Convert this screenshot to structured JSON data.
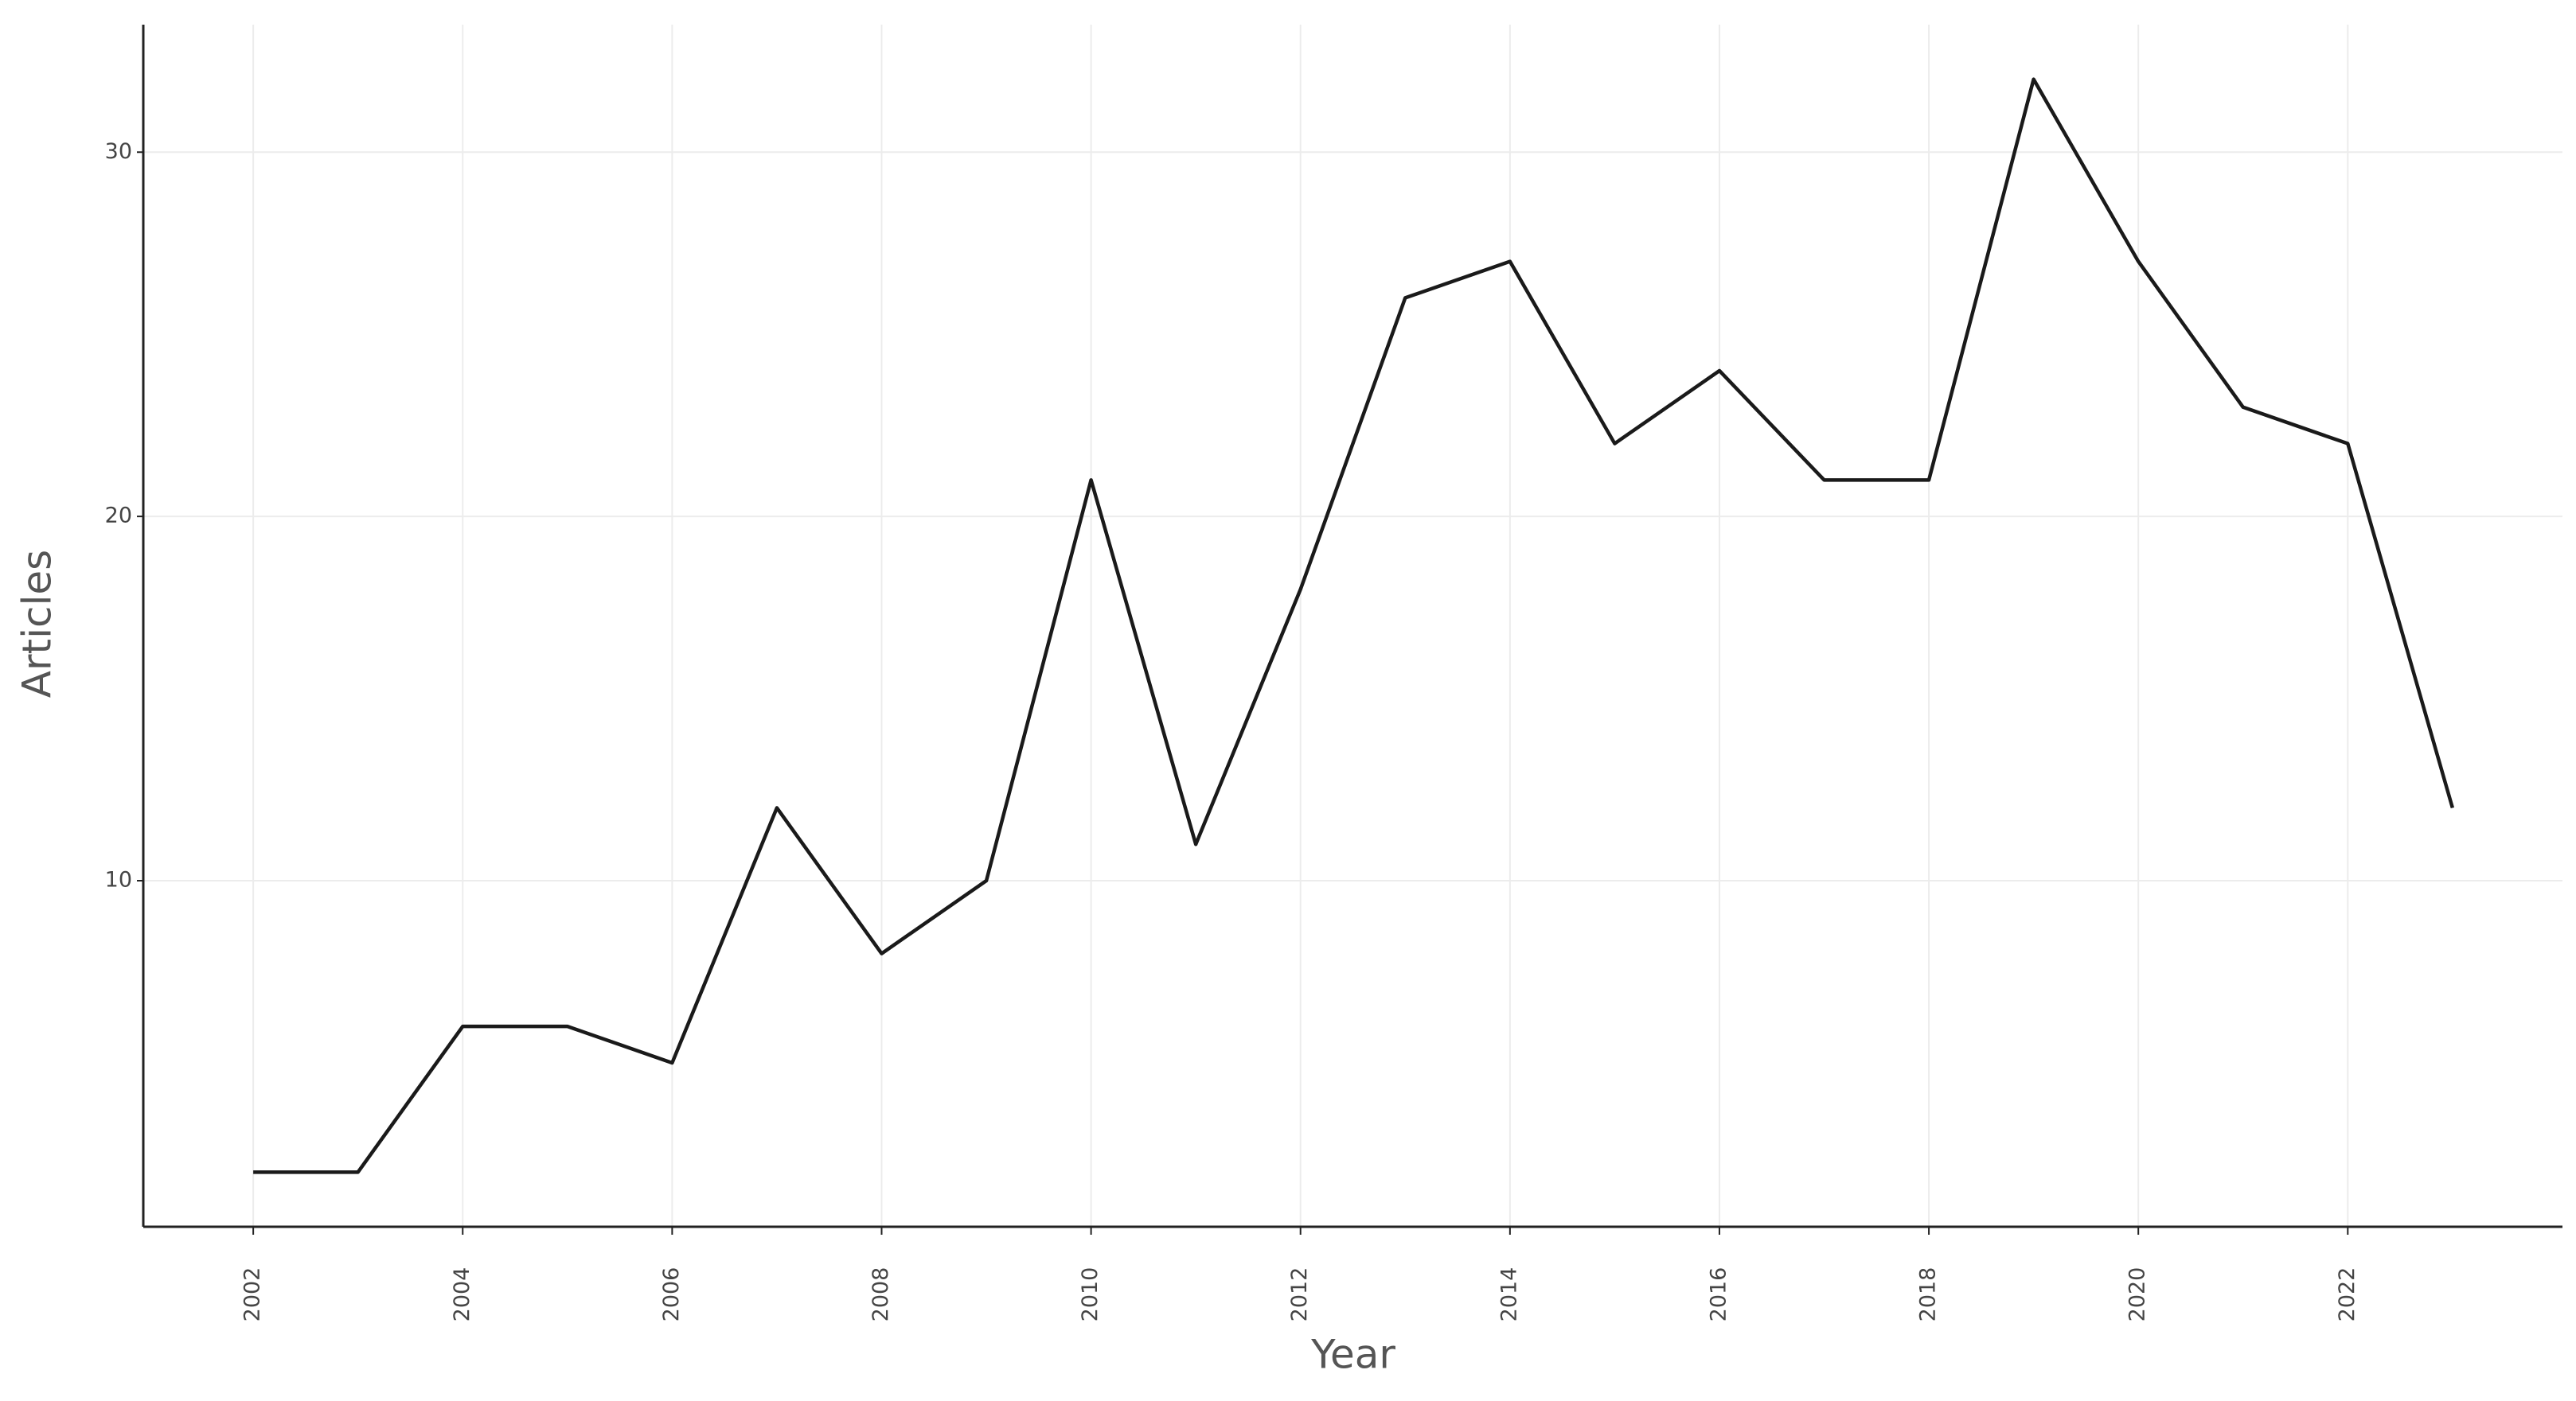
{
  "chart_data": {
    "type": "line",
    "x_label": "Year",
    "y_label": "Articles",
    "x": [
      2002,
      2003,
      2004,
      2005,
      2006,
      2007,
      2008,
      2009,
      2010,
      2011,
      2012,
      2013,
      2014,
      2015,
      2016,
      2017,
      2018,
      2019,
      2020,
      2021,
      2022,
      2023
    ],
    "values": [
      2,
      2,
      6,
      6,
      5,
      12,
      8,
      10,
      21,
      11,
      18,
      26,
      27,
      22,
      24,
      21,
      21,
      32,
      27,
      23,
      22,
      12
    ],
    "color": "#1a1a1a",
    "xlim": [
      2000.95,
      2024.05
    ],
    "xticks": [
      2002,
      2004,
      2006,
      2008,
      2010,
      2012,
      2014,
      2016,
      2018,
      2020,
      2022
    ],
    "ylim": [
      0.5,
      33.5
    ],
    "yticks": [
      10,
      20,
      30
    ],
    "grid": true
  }
}
